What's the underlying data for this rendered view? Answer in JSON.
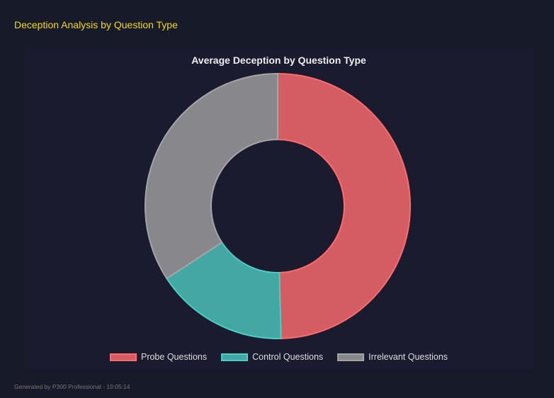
{
  "header": {
    "title": "Deception Analysis by Question Type"
  },
  "footer": {
    "text": "Generated by P300 Professional - 10:05:14"
  },
  "chart_data": {
    "type": "pie",
    "variant": "doughnut",
    "title": "Average Deception by Question Type",
    "categories": [
      "Probe Questions",
      "Control Questions",
      "Irrelevant Questions"
    ],
    "values": [
      49.6,
      16.2,
      34.2
    ],
    "colors": [
      "#d35d62",
      "#43a8a3",
      "#88878b"
    ],
    "border_colors": [
      "#ff6b6b",
      "#4ecdc4",
      "#a5a5a5"
    ],
    "legend": "bottom"
  }
}
